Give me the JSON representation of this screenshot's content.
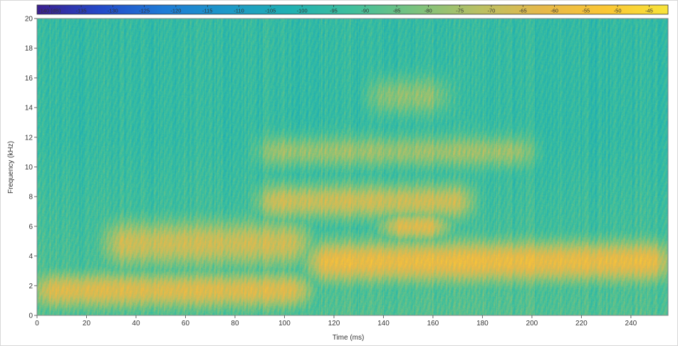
{
  "chart_data": {
    "type": "heatmap",
    "title": "",
    "xlabel": "Time (ms)",
    "ylabel": "Frequency (kHz)",
    "xlim": [
      0,
      255
    ],
    "ylim": [
      0,
      20
    ],
    "x_ticks": [
      0,
      20,
      40,
      60,
      80,
      100,
      120,
      140,
      160,
      180,
      200,
      220,
      240
    ],
    "y_ticks": [
      0,
      2,
      4,
      6,
      8,
      10,
      12,
      14,
      16,
      18,
      20
    ],
    "colorbar": {
      "ticks": [
        "-140 (dB)",
        "-135",
        "-130",
        "-125",
        "-120",
        "-115",
        "-110",
        "-105",
        "-100",
        "-95",
        "-90",
        "-85",
        "-80",
        "-75",
        "-70",
        "-65",
        "-60",
        "-55",
        "-50",
        "-45"
      ],
      "range": [
        -142,
        -42
      ],
      "colors": [
        "#3b1f8f",
        "#2349c8",
        "#1e7bd6",
        "#1d98c8",
        "#1fb0b2",
        "#3fbf9c",
        "#7ac27e",
        "#b9c063",
        "#e6b84a",
        "#fbc634",
        "#f8e43a"
      ]
    },
    "energy_bands": [
      {
        "t_start": 0,
        "t_end": 110,
        "f_low": 0.8,
        "f_high": 2.6,
        "level_db": -60
      },
      {
        "t_start": 28,
        "t_end": 110,
        "f_low": 3.5,
        "f_high": 6.2,
        "level_db": -64
      },
      {
        "t_start": 90,
        "t_end": 175,
        "f_low": 6.8,
        "f_high": 8.6,
        "level_db": -64
      },
      {
        "t_start": 110,
        "t_end": 255,
        "f_low": 2.5,
        "f_high": 4.8,
        "level_db": -55
      },
      {
        "t_start": 140,
        "t_end": 165,
        "f_low": 5.5,
        "f_high": 6.5,
        "level_db": -60
      },
      {
        "t_start": 90,
        "t_end": 200,
        "f_low": 10.3,
        "f_high": 11.8,
        "level_db": -74
      },
      {
        "t_start": 135,
        "t_end": 165,
        "f_low": 13.8,
        "f_high": 15.8,
        "level_db": -76
      }
    ],
    "background_level_db": -95
  }
}
